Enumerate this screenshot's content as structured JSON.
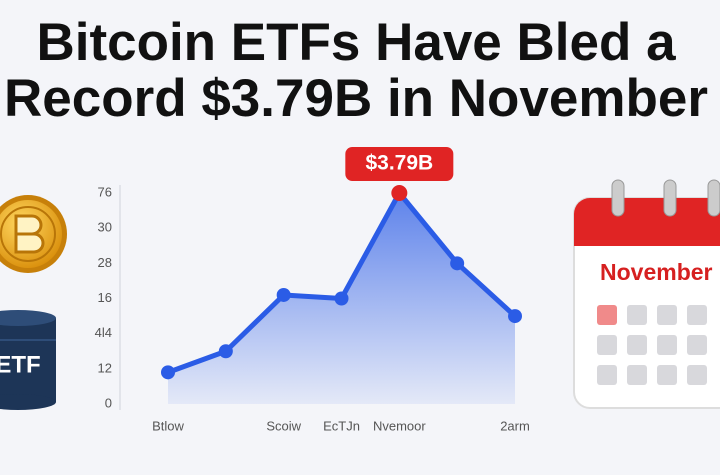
{
  "chart_data": {
    "type": "line",
    "title": [
      "Bitcoin ETFs Have Bled a",
      "Record $3.79B in November"
    ],
    "annotation": "$3.79B",
    "icon_label": "ETF",
    "calendar_label": "November",
    "categories": [
      "Btlow",
      null,
      "Scoiw",
      "EcTJn",
      "Nvemoor",
      null,
      "2arm"
    ],
    "series": [
      {
        "name": null,
        "color": "#2b5ce6",
        "values": [
          0.9,
          1.5,
          3.1,
          3.0,
          6.0,
          4.0,
          2.5
        ]
      }
    ],
    "ylim": [
      0,
      6
    ],
    "yticks": [
      {
        "value": 0,
        "label": "0"
      },
      {
        "value": 1,
        "label": "12"
      },
      {
        "value": 2,
        "label": "4l4"
      },
      {
        "value": 3,
        "label": "16"
      },
      {
        "value": 4,
        "label": "28"
      },
      {
        "value": 5,
        "label": "30"
      },
      {
        "value": 6,
        "label": "76"
      }
    ],
    "highlight_color": "#e02424",
    "grid": false
  }
}
